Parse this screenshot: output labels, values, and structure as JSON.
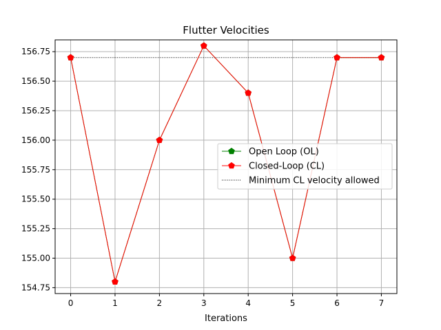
{
  "chart_data": {
    "type": "line",
    "title": "Flutter Velocities",
    "xlabel": "Iterations",
    "ylabel": "",
    "x": [
      0,
      1,
      2,
      3,
      4,
      5,
      6,
      7
    ],
    "xticks": [
      "0",
      "1",
      "2",
      "3",
      "4",
      "5",
      "6",
      "7"
    ],
    "yticks": [
      "154.75",
      "155.00",
      "155.25",
      "155.50",
      "155.75",
      "156.00",
      "156.25",
      "156.50",
      "156.75"
    ],
    "xlim": [
      -0.35,
      7.35
    ],
    "ylim": [
      154.7,
      156.85
    ],
    "grid": true,
    "legend_position": "center-right",
    "series": [
      {
        "name": "Open Loop (OL)",
        "values": [
          156.7,
          154.8,
          156.0,
          156.8,
          156.4,
          155.0,
          156.7,
          156.7
        ],
        "color": "#008000",
        "marker": "pentagon",
        "style": "solid"
      },
      {
        "name": "Closed-Loop (CL)",
        "values": [
          156.7,
          154.8,
          156.0,
          156.8,
          156.4,
          155.0,
          156.7,
          156.7
        ],
        "color": "#ff0000",
        "marker": "pentagon",
        "style": "solid"
      },
      {
        "name": "Minimum CL velocity allowed",
        "values": [
          156.7,
          156.7,
          156.7,
          156.7,
          156.7,
          156.7,
          156.7,
          156.7
        ],
        "color": "#000000",
        "marker": "none",
        "style": "dotted"
      }
    ]
  }
}
